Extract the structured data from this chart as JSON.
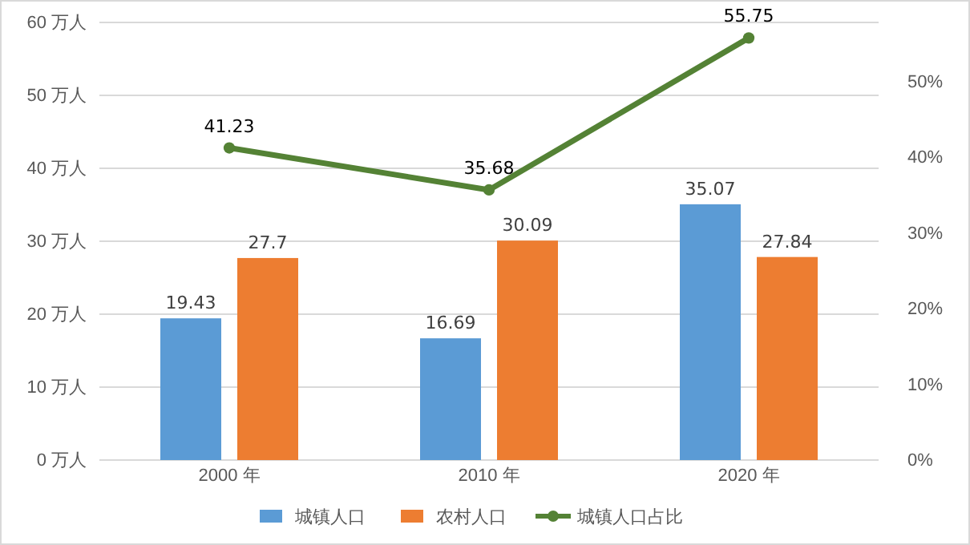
{
  "chart_data": {
    "type": "bar",
    "categories": [
      "2000 年",
      "2010 年",
      "2020 年"
    ],
    "series": [
      {
        "name": "城镇人口",
        "color": "#5b9bd5",
        "values": [
          19.43,
          16.69,
          35.07
        ]
      },
      {
        "name": "农村人口",
        "color": "#ed7d31",
        "values": [
          27.7,
          30.09,
          27.84
        ]
      },
      {
        "name": "城镇人口占比",
        "type": "line",
        "axis": "y2",
        "color": "#548235",
        "values": [
          41.23,
          35.68,
          55.75
        ]
      }
    ],
    "ylim": [
      0,
      60
    ],
    "yticks": [
      {
        "value": 0,
        "label": "0 万人"
      },
      {
        "value": 10,
        "label": "10 万人"
      },
      {
        "value": 20,
        "label": "20 万人"
      },
      {
        "value": 30,
        "label": "30 万人"
      },
      {
        "value": 40,
        "label": "40 万人"
      },
      {
        "value": 50,
        "label": "50 万人"
      },
      {
        "value": 60,
        "label": "60 万人"
      }
    ],
    "y2lim": [
      0,
      57.8
    ],
    "y2ticks": [
      {
        "value": 0,
        "label": "0%"
      },
      {
        "value": 10,
        "label": "10%"
      },
      {
        "value": 20,
        "label": "20%"
      },
      {
        "value": 30,
        "label": "30%"
      },
      {
        "value": 40,
        "label": "40%"
      },
      {
        "value": 50,
        "label": "50%"
      }
    ],
    "grid": "y",
    "legend": "bottom",
    "marker": "circle",
    "data_labels": true
  }
}
